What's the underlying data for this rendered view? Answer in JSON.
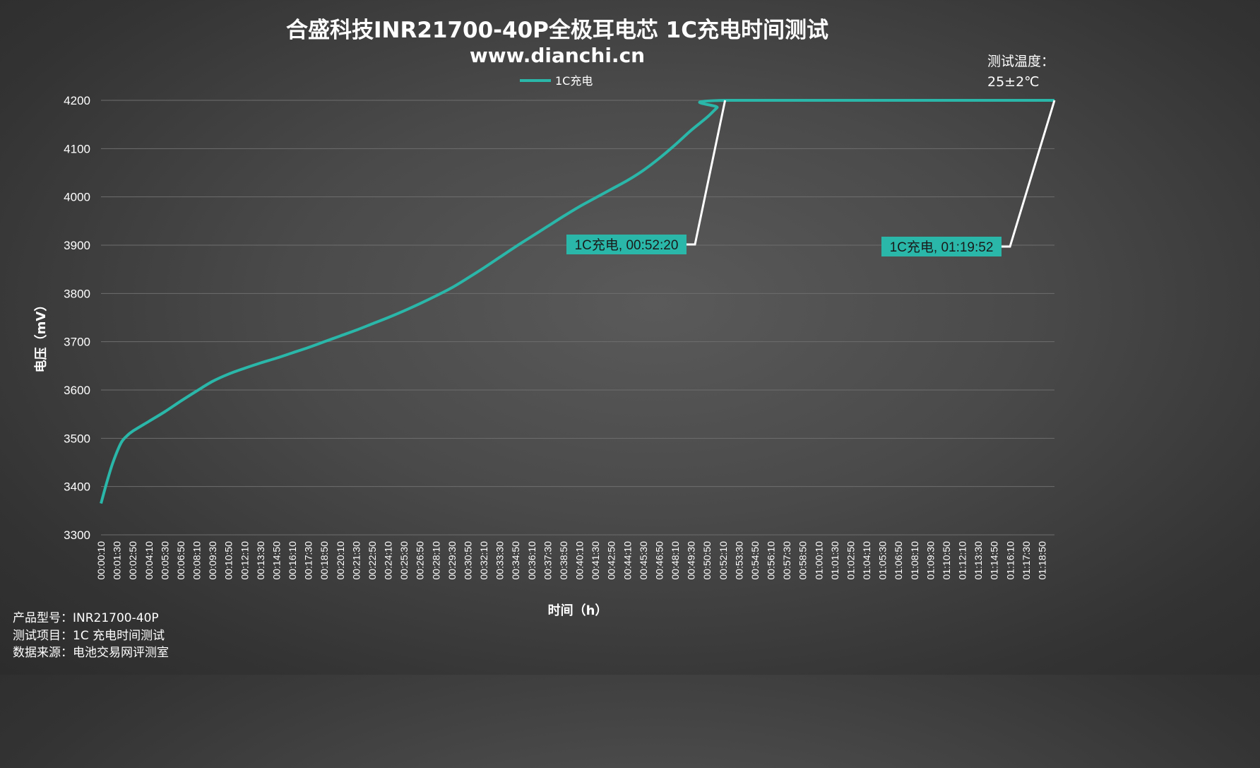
{
  "chart_data": {
    "type": "line",
    "title": "合盛科技INR21700-40P全极耳电芯 1C充电时间测试",
    "subtitle": "www.dianchi.cn",
    "xlabel": "时间（h）",
    "ylabel": "电压（mV）",
    "ylim": [
      3300,
      4200
    ],
    "yticks": [
      3300,
      3400,
      3500,
      3600,
      3700,
      3800,
      3900,
      4000,
      4100,
      4200
    ],
    "grid": true,
    "legend_position": "top-center",
    "x_tick_labels": [
      "00:00:10",
      "00:01:30",
      "00:02:50",
      "00:04:10",
      "00:05:30",
      "00:06:50",
      "00:08:10",
      "00:09:30",
      "00:10:50",
      "00:12:10",
      "00:13:30",
      "00:14:50",
      "00:16:10",
      "00:17:30",
      "00:18:50",
      "00:20:10",
      "00:21:30",
      "00:22:50",
      "00:24:10",
      "00:25:30",
      "00:26:50",
      "00:28:10",
      "00:29:30",
      "00:30:50",
      "00:32:10",
      "00:33:30",
      "00:34:50",
      "00:36:10",
      "00:37:30",
      "00:38:50",
      "00:40:10",
      "00:41:30",
      "00:42:50",
      "00:44:10",
      "00:45:30",
      "00:46:50",
      "00:48:10",
      "00:49:30",
      "00:50:50",
      "00:52:10",
      "00:53:30",
      "00:54:50",
      "00:56:10",
      "00:57:30",
      "00:58:50",
      "01:00:10",
      "01:01:30",
      "01:02:50",
      "01:04:10",
      "01:05:30",
      "01:06:50",
      "01:08:10",
      "01:09:30",
      "01:10:50",
      "01:12:10",
      "01:13:30",
      "01:14:50",
      "01:16:10",
      "01:17:30",
      "01:18:50"
    ],
    "series": [
      {
        "name": "1C充电",
        "color": "#2ab7a9",
        "points": [
          [
            "00:00:10",
            3365
          ],
          [
            "00:00:40",
            3410
          ],
          [
            "00:01:10",
            3450
          ],
          [
            "00:01:50",
            3490
          ],
          [
            "00:02:20",
            3505
          ],
          [
            "00:02:50",
            3515
          ],
          [
            "00:04:10",
            3535
          ],
          [
            "00:05:30",
            3555
          ],
          [
            "00:06:50",
            3577
          ],
          [
            "00:08:10",
            3598
          ],
          [
            "00:09:30",
            3618
          ],
          [
            "00:10:50",
            3633
          ],
          [
            "00:12:10",
            3645
          ],
          [
            "00:13:30",
            3656
          ],
          [
            "00:14:50",
            3666
          ],
          [
            "00:16:10",
            3677
          ],
          [
            "00:17:30",
            3688
          ],
          [
            "00:18:50",
            3700
          ],
          [
            "00:20:10",
            3712
          ],
          [
            "00:21:30",
            3724
          ],
          [
            "00:22:50",
            3737
          ],
          [
            "00:24:10",
            3750
          ],
          [
            "00:25:30",
            3764
          ],
          [
            "00:26:50",
            3779
          ],
          [
            "00:28:10",
            3795
          ],
          [
            "00:29:30",
            3812
          ],
          [
            "00:30:50",
            3832
          ],
          [
            "00:32:10",
            3853
          ],
          [
            "00:33:30",
            3875
          ],
          [
            "00:34:50",
            3897
          ],
          [
            "00:36:10",
            3918
          ],
          [
            "00:37:30",
            3939
          ],
          [
            "00:38:50",
            3960
          ],
          [
            "00:40:10",
            3980
          ],
          [
            "00:41:30",
            3998
          ],
          [
            "00:42:50",
            4016
          ],
          [
            "00:44:10",
            4034
          ],
          [
            "00:45:30",
            4055
          ],
          [
            "00:46:50",
            4080
          ],
          [
            "00:48:10",
            4108
          ],
          [
            "00:49:30",
            4138
          ],
          [
            "00:50:50",
            4165
          ],
          [
            "00:51:40",
            4185
          ],
          [
            "00:52:20",
            4200
          ],
          [
            "01:19:52",
            4200
          ]
        ]
      }
    ],
    "annotations": [
      {
        "text": "1C充电, 00:52:20",
        "x": "00:52:20",
        "y": 4200
      },
      {
        "text": "1C充电, 01:19:52",
        "x": "01:19:52",
        "y": 4200
      }
    ]
  },
  "notes": {
    "temperature_line1": "测试温度：",
    "temperature_line2": "25±2℃"
  },
  "info": {
    "model": "产品型号：INR21700-40P",
    "test_item": "测试项目：1C 充电时间测试",
    "source": "数据来源：电池交易网评测室"
  },
  "colors": {
    "line": "#2ab7a9",
    "label_bg": "#2ab7a9",
    "gridline": "#6e6e6e",
    "leader": "#ffffff"
  }
}
